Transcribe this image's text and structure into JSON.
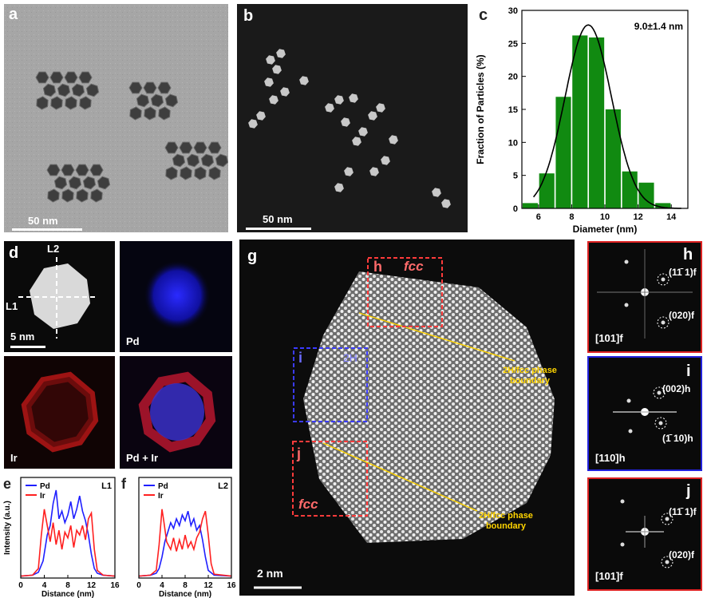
{
  "panels": {
    "a": {
      "label": "a",
      "scalebar": "50 nm"
    },
    "b": {
      "label": "b",
      "scalebar": "50 nm"
    },
    "c": {
      "label": "c"
    },
    "d": {
      "label": "d",
      "line1": "L1",
      "line2": "L2",
      "scalebar": "5 nm",
      "pd": "Pd",
      "ir": "Ir",
      "pdir": "Pd + Ir"
    },
    "e": {
      "label": "e"
    },
    "f": {
      "label": "f"
    },
    "g": {
      "label": "g",
      "scalebar": "2 nm",
      "box_h": "h",
      "box_h_phase": "fcc",
      "box_i": "i",
      "box_i_phase": "2H",
      "box_j": "j",
      "box_j_phase": "fcc",
      "boundary_line1": "2H/fcc phase",
      "boundary_line2": "boundary"
    },
    "h": {
      "label": "h",
      "spot1": "(11̄ 1)f",
      "spot2": "(020)f",
      "zone": "[101]f"
    },
    "i": {
      "label": "i",
      "spot1": "(002)h",
      "spot2": "(1̄ 10)h",
      "zone": "[110]h"
    },
    "j": {
      "label": "j",
      "spot1": "(11̄ 1)f",
      "spot2": "(020)f",
      "zone": "[101]f"
    }
  },
  "chart_data": [
    {
      "type": "bar",
      "panel": "c",
      "annotation": "9.0±1.4 nm",
      "xlabel": "Diameter (nm)",
      "ylabel": "Fraction of Particles (%)",
      "x": [
        5.5,
        6.5,
        7.5,
        8.5,
        9.5,
        10.5,
        11.5,
        12.5,
        13.5
      ],
      "values": [
        0.8,
        5.3,
        16.9,
        26.2,
        25.9,
        15.0,
        5.6,
        3.9,
        0.8
      ],
      "xlim": [
        5,
        15
      ],
      "ylim": [
        0,
        30
      ],
      "xticks": [
        6,
        8,
        10,
        12,
        14
      ],
      "yticks": [
        0,
        5,
        10,
        15,
        20,
        25,
        30
      ],
      "fit": {
        "type": "gaussian",
        "mean": 9.0,
        "sigma": 1.4,
        "peak": 27.8
      },
      "bar_color": "#118a11"
    },
    {
      "type": "line",
      "panel": "e",
      "title": "L1",
      "xlabel": "Distance (nm)",
      "ylabel": "Intensity (a.u.)",
      "xlim": [
        0,
        16
      ],
      "xticks": [
        0,
        4,
        8,
        12,
        16
      ],
      "series": [
        {
          "name": "Pd",
          "color": "#1f1fff",
          "x": [
            0,
            2,
            3,
            3.8,
            4.5,
            5,
            5.5,
            6,
            6.5,
            7,
            7.5,
            8,
            8.5,
            9,
            9.5,
            10,
            10.5,
            11,
            11.5,
            12,
            12.5,
            13,
            14,
            16
          ],
          "y": [
            0.02,
            0.03,
            0.06,
            0.18,
            0.45,
            0.55,
            0.78,
            0.92,
            0.62,
            0.7,
            0.58,
            0.66,
            0.8,
            0.62,
            0.72,
            0.86,
            0.7,
            0.6,
            0.45,
            0.25,
            0.1,
            0.05,
            0.03,
            0.02
          ]
        },
        {
          "name": "Ir",
          "color": "#ff2020",
          "x": [
            0,
            2,
            3,
            3.5,
            4,
            4.5,
            5,
            5.5,
            6,
            6.5,
            7,
            7.5,
            8,
            8.5,
            9,
            9.5,
            10,
            10.5,
            11,
            11.5,
            12,
            12.5,
            13,
            14,
            16
          ],
          "y": [
            0.02,
            0.03,
            0.1,
            0.45,
            0.72,
            0.55,
            0.38,
            0.58,
            0.35,
            0.5,
            0.3,
            0.48,
            0.42,
            0.55,
            0.32,
            0.5,
            0.45,
            0.55,
            0.4,
            0.62,
            0.68,
            0.3,
            0.08,
            0.03,
            0.02
          ]
        }
      ]
    },
    {
      "type": "line",
      "panel": "f",
      "title": "L2",
      "xlabel": "Distance (nm)",
      "ylabel": "",
      "xlim": [
        0,
        16
      ],
      "xticks": [
        0,
        4,
        8,
        12,
        16
      ],
      "series": [
        {
          "name": "Pd",
          "color": "#1f1fff",
          "x": [
            0,
            2,
            3,
            3.5,
            4,
            4.5,
            5,
            5.5,
            6,
            6.5,
            7,
            7.5,
            8,
            8.5,
            9,
            9.5,
            10,
            10.5,
            11,
            11.5,
            12,
            13,
            16
          ],
          "y": [
            0.02,
            0.03,
            0.05,
            0.1,
            0.22,
            0.38,
            0.48,
            0.58,
            0.52,
            0.62,
            0.55,
            0.66,
            0.6,
            0.7,
            0.55,
            0.62,
            0.5,
            0.55,
            0.4,
            0.22,
            0.08,
            0.03,
            0.02
          ]
        },
        {
          "name": "Ir",
          "color": "#ff2020",
          "x": [
            0,
            2,
            3,
            3.5,
            4,
            4.3,
            4.8,
            5.5,
            6,
            6.5,
            7,
            7.5,
            8,
            8.5,
            9,
            9.5,
            10,
            10.5,
            11,
            11.5,
            12,
            12.5,
            13,
            16
          ],
          "y": [
            0.02,
            0.03,
            0.08,
            0.35,
            0.72,
            0.6,
            0.38,
            0.3,
            0.42,
            0.28,
            0.4,
            0.3,
            0.45,
            0.32,
            0.38,
            0.3,
            0.42,
            0.48,
            0.62,
            0.7,
            0.45,
            0.15,
            0.04,
            0.02
          ]
        }
      ]
    }
  ]
}
